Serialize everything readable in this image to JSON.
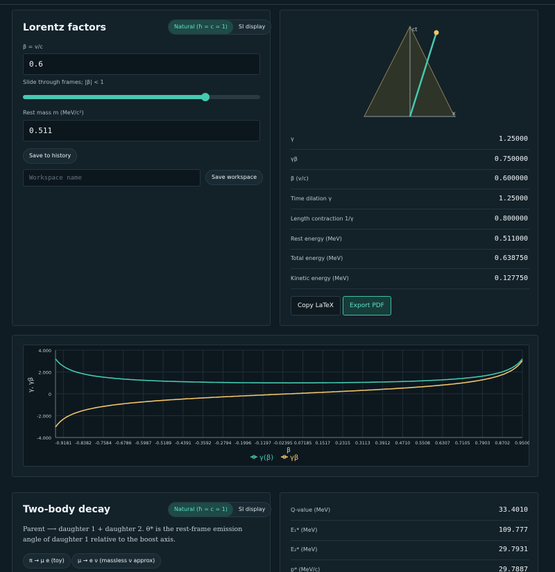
{
  "lorentz": {
    "title": "Lorentz factors",
    "toggle_natural": "Natural (ħ = c = 1)",
    "toggle_si": "SI display",
    "beta_label": "β = v/c",
    "beta_value": "0.6",
    "slider_label": "Slide through frames; |β| < 1",
    "slider_fraction": 0.8,
    "mass_label": "Rest mass m (MeV/c²)",
    "mass_value": "0.511",
    "save_history": "Save to history",
    "workspace_placeholder": "Workspace name",
    "save_workspace": "Save workspace"
  },
  "diagram": {
    "ct_label": "ct",
    "x_label": "x"
  },
  "results": [
    {
      "key": "γ",
      "value": "1.25000"
    },
    {
      "key": "γβ",
      "value": "0.750000"
    },
    {
      "key": "β (v/c)",
      "value": "0.600000"
    },
    {
      "key": "Time dilation γ",
      "value": "1.25000"
    },
    {
      "key": "Length contraction 1/γ",
      "value": "0.800000"
    },
    {
      "key": "Rest energy (MeV)",
      "value": "0.511000"
    },
    {
      "key": "Total energy (MeV)",
      "value": "0.638750"
    },
    {
      "key": "Kinetic energy (MeV)",
      "value": "0.127750"
    }
  ],
  "actions": {
    "copy_latex": "Copy LaTeX",
    "export_pdf": "Export PDF"
  },
  "chart_data": {
    "type": "line",
    "xlabel": "β",
    "ylabel": "γ, γβ",
    "xlim": [
      -0.95,
      0.95
    ],
    "ylim": [
      -4,
      4
    ],
    "y_ticks": [
      "4.000",
      "2.000",
      "0",
      "-2.000",
      "-4.000"
    ],
    "x_ticks": [
      "-0.9181",
      "-0.8382",
      "-0.7584",
      "-0.6786",
      "-0.5987",
      "-0.5189",
      "-0.4391",
      "-0.3592",
      "-0.2794",
      "-0.1996",
      "-0.1197",
      "-0.02395",
      "0.07185",
      "0.1517",
      "0.2315",
      "0.3113",
      "0.3912",
      "0.4710",
      "0.5508",
      "0.6307",
      "0.7105",
      "0.7903",
      "0.8702",
      "0.9500"
    ],
    "grid": true,
    "legend": "bottom",
    "series": [
      {
        "name": "γ(β)",
        "color": "#45c9b0",
        "x": [
          -0.95,
          -0.9,
          -0.8,
          -0.6,
          -0.4,
          -0.2,
          0,
          0.2,
          0.4,
          0.6,
          0.8,
          0.9,
          0.95
        ],
        "y": [
          3.2026,
          2.2942,
          1.6667,
          1.25,
          1.0911,
          1.0206,
          1.0,
          1.0206,
          1.0911,
          1.25,
          1.6667,
          2.2942,
          3.2026
        ]
      },
      {
        "name": "γβ",
        "color": "#f2c46a",
        "x": [
          -0.95,
          -0.9,
          -0.8,
          -0.6,
          -0.4,
          -0.2,
          0,
          0.2,
          0.4,
          0.6,
          0.8,
          0.9,
          0.95
        ],
        "y": [
          -3.0424,
          -2.0647,
          -1.3333,
          -0.75,
          -0.4364,
          -0.2041,
          0,
          0.2041,
          0.4364,
          0.75,
          1.3333,
          2.0647,
          3.0424
        ]
      }
    ]
  },
  "decay": {
    "title": "Two-body decay",
    "toggle_natural": "Natural (ħ = c = 1)",
    "toggle_si": "SI display",
    "description": "Parent ⟶ daughter 1 + daughter 2. θ* is the rest-frame emission angle of daughter 1 relative to the boost axis.",
    "preset1": "π → μ e (toy)",
    "preset2": "μ → e ν (massless ν approx)"
  },
  "decay_results": [
    {
      "key": "Q-value (MeV)",
      "value": "33.4010"
    },
    {
      "key": "E₁* (MeV)",
      "value": "109.777"
    },
    {
      "key": "E₂* (MeV)",
      "value": "29.7931"
    },
    {
      "key": "p* (MeV/c)",
      "value": "29.7887"
    }
  ]
}
